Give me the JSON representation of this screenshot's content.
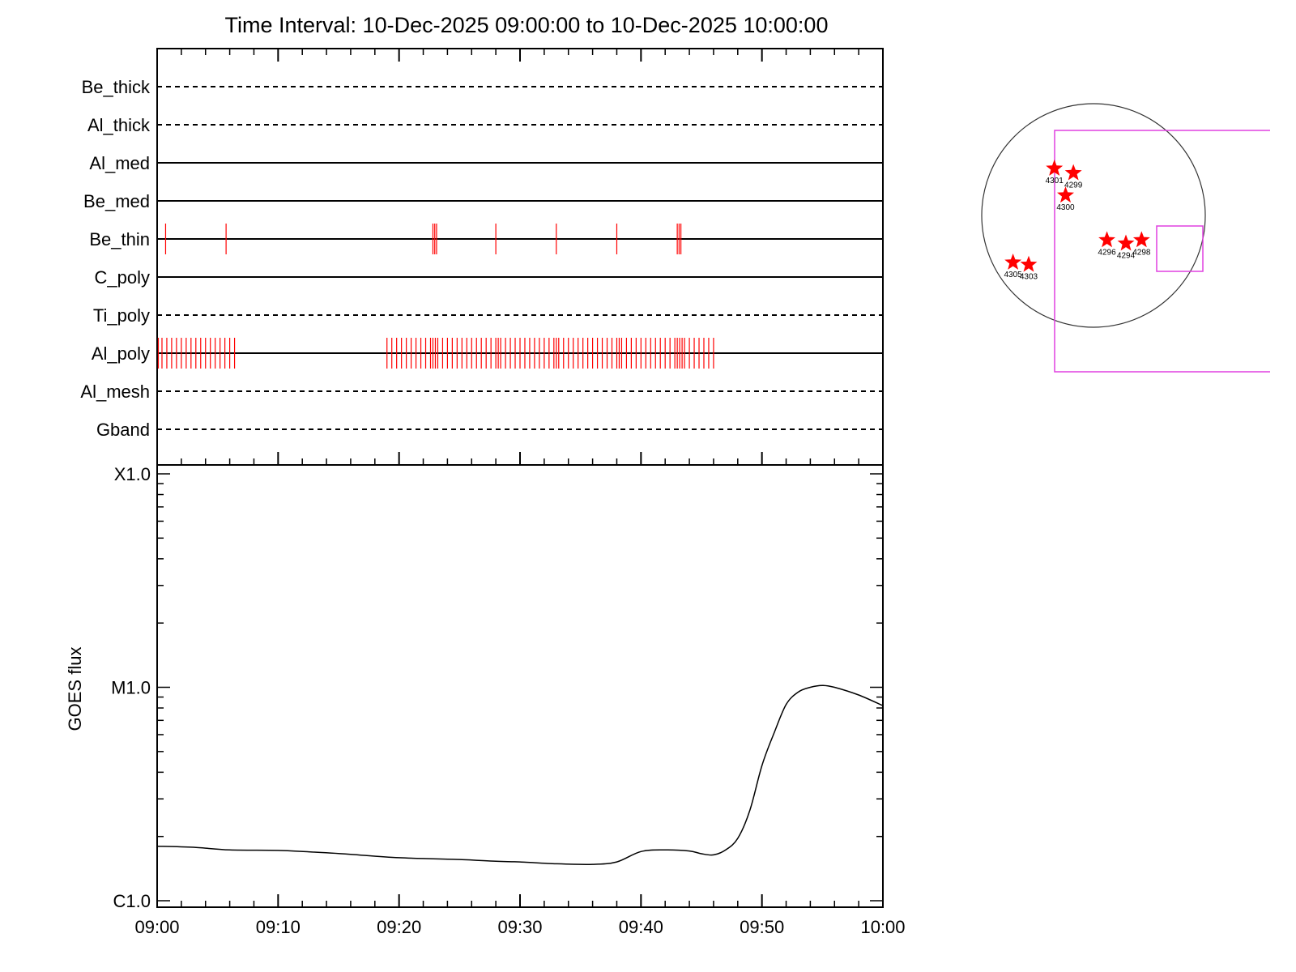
{
  "title": "Time Interval: 10-Dec-2025 09:00:00 to 10-Dec-2025 10:00:00",
  "colors": {
    "axis": "#000000",
    "event": "#ff0000",
    "box": "#e040e0",
    "star": "#ff0000"
  },
  "chart_data": [
    {
      "type": "event-timeline",
      "channels": [
        {
          "name": "Be_thick",
          "line": "dashed",
          "events": []
        },
        {
          "name": "Al_thick",
          "line": "dashed",
          "events": []
        },
        {
          "name": "Al_med",
          "line": "solid",
          "events": []
        },
        {
          "name": "Be_med",
          "line": "solid",
          "events": []
        },
        {
          "name": "Be_thin",
          "line": "solid",
          "events": [
            0.7,
            5.7,
            22.8,
            22.95,
            23.1,
            28.0,
            33.0,
            38.0,
            43.0,
            43.15,
            43.3
          ]
        },
        {
          "name": "C_poly",
          "line": "solid",
          "events": []
        },
        {
          "name": "Ti_poly",
          "line": "dashed",
          "events": []
        },
        {
          "name": "Al_poly",
          "line": "solid",
          "events": [
            0.1,
            0.4,
            0.8,
            1.2,
            1.6,
            2.0,
            2.4,
            2.8,
            3.2,
            3.6,
            4.0,
            4.4,
            4.8,
            5.2,
            5.6,
            6.0,
            6.4,
            19.0,
            19.4,
            19.8,
            20.2,
            20.6,
            21.0,
            21.4,
            21.8,
            22.2,
            22.6,
            22.8,
            23.0,
            23.2,
            23.6,
            24.0,
            24.4,
            24.8,
            25.2,
            25.6,
            26.0,
            26.4,
            26.8,
            27.2,
            27.6,
            28.0,
            28.2,
            28.4,
            28.8,
            29.2,
            29.6,
            30.0,
            30.4,
            30.8,
            31.2,
            31.6,
            32.0,
            32.4,
            32.8,
            33.0,
            33.2,
            33.6,
            34.0,
            34.4,
            34.8,
            35.2,
            35.6,
            36.0,
            36.4,
            36.8,
            37.2,
            37.6,
            38.0,
            38.2,
            38.4,
            38.8,
            39.2,
            39.6,
            40.0,
            40.4,
            40.8,
            41.2,
            41.6,
            42.0,
            42.4,
            42.8,
            43.0,
            43.2,
            43.4,
            43.6,
            44.0,
            44.4,
            44.8,
            45.2,
            45.6,
            46.0
          ]
        },
        {
          "name": "Al_mesh",
          "line": "dashed",
          "events": []
        },
        {
          "name": "Gband",
          "line": "dashed",
          "events": []
        }
      ]
    },
    {
      "type": "line",
      "ylabel": "GOES flux",
      "yscale": "log",
      "yticks": [
        {
          "label": "X1.0",
          "value": 0.0001
        },
        {
          "label": "M1.0",
          "value": 1e-05
        },
        {
          "label": "C1.0",
          "value": 1e-06
        }
      ],
      "xticks": [
        "09:00",
        "09:10",
        "09:20",
        "09:30",
        "09:40",
        "09:50",
        "10:00"
      ],
      "x_minutes": [
        0,
        3,
        6,
        10,
        13,
        16,
        20,
        25,
        28,
        30,
        33,
        36,
        38,
        40,
        42,
        44,
        45,
        46,
        47,
        48,
        49,
        50,
        51,
        52,
        53,
        54,
        55,
        56,
        58,
        60
      ],
      "y_flux": [
        1.8e-06,
        1.78e-06,
        1.73e-06,
        1.72e-06,
        1.69e-06,
        1.65e-06,
        1.59e-06,
        1.56e-06,
        1.53e-06,
        1.52e-06,
        1.49e-06,
        1.48e-06,
        1.52e-06,
        1.7e-06,
        1.73e-06,
        1.71e-06,
        1.66e-06,
        1.64e-06,
        1.73e-06,
        1.96e-06,
        2.65e-06,
        4.3e-06,
        6.1e-06,
        8.3e-06,
        9.5e-06,
        1e-05,
        1.02e-05,
        1e-05,
        9.2e-06,
        8.2e-06
      ]
    },
    {
      "type": "map",
      "regions": [
        {
          "label": "4301",
          "x": -0.35,
          "y": 0.42
        },
        {
          "label": "4299",
          "x": -0.18,
          "y": 0.38
        },
        {
          "label": "4300",
          "x": -0.25,
          "y": 0.18
        },
        {
          "label": "4296",
          "x": 0.12,
          "y": -0.22
        },
        {
          "label": "4294",
          "x": 0.29,
          "y": -0.25
        },
        {
          "label": "4298",
          "x": 0.43,
          "y": -0.22
        },
        {
          "label": "4305",
          "x": -0.72,
          "y": -0.42
        },
        {
          "label": "4303",
          "x": -0.58,
          "y": -0.44
        }
      ]
    }
  ]
}
